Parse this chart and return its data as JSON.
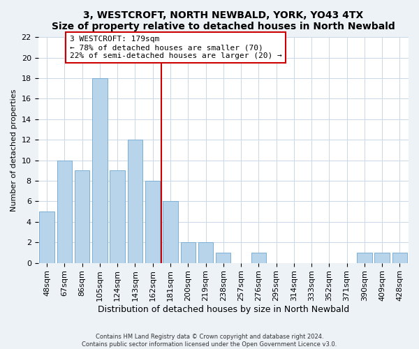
{
  "title": "3, WESTCROFT, NORTH NEWBALD, YORK, YO43 4TX",
  "subtitle": "Size of property relative to detached houses in North Newbald",
  "xlabel": "Distribution of detached houses by size in North Newbald",
  "ylabel": "Number of detached properties",
  "bar_labels": [
    "48sqm",
    "67sqm",
    "86sqm",
    "105sqm",
    "124sqm",
    "143sqm",
    "162sqm",
    "181sqm",
    "200sqm",
    "219sqm",
    "238sqm",
    "257sqm",
    "276sqm",
    "295sqm",
    "314sqm",
    "333sqm",
    "352sqm",
    "371sqm",
    "390sqm",
    "409sqm",
    "428sqm"
  ],
  "bar_values": [
    5,
    10,
    9,
    18,
    9,
    12,
    8,
    6,
    2,
    2,
    1,
    0,
    1,
    0,
    0,
    0,
    0,
    0,
    1,
    1,
    1
  ],
  "bar_color": "#b8d4ea",
  "bar_edge_color": "#7aafd4",
  "vline_color": "#cc0000",
  "annotation_title": "3 WESTCROFT: 179sqm",
  "annotation_line1": "← 78% of detached houses are smaller (70)",
  "annotation_line2": "22% of semi-detached houses are larger (20) →",
  "annotation_box_color": "#ffffff",
  "annotation_box_edge": "#cc0000",
  "ylim": [
    0,
    22
  ],
  "yticks": [
    0,
    2,
    4,
    6,
    8,
    10,
    12,
    14,
    16,
    18,
    20,
    22
  ],
  "footer1": "Contains HM Land Registry data © Crown copyright and database right 2024.",
  "footer2": "Contains public sector information licensed under the Open Government Licence v3.0.",
  "background_color": "#edf2f7",
  "plot_background": "#ffffff",
  "grid_color": "#c8d8e8",
  "title_fontsize": 10,
  "subtitle_fontsize": 9,
  "xlabel_fontsize": 9,
  "ylabel_fontsize": 8,
  "tick_fontsize": 8,
  "annot_fontsize": 8
}
